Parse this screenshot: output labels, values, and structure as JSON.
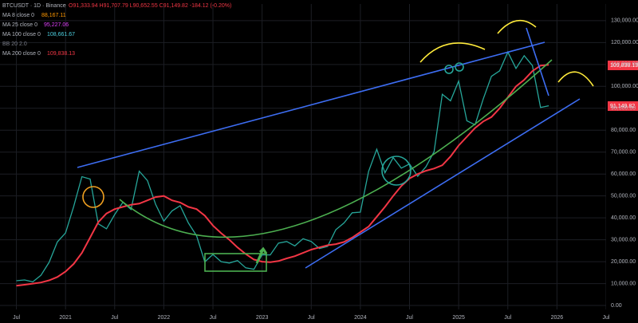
{
  "chart_data": {
    "type": "line",
    "header": {
      "symbol": "BTCUSDT · 1D · Binance",
      "ohlc": "O91,333.94 H91,707.79 L90,652.55 C91,149.82 -184.12 (-0.20%)",
      "ma8": "MA 8 close 0",
      "ma8_value": "88,167.11",
      "ma25": "MA 25 close 0",
      "ma25_value": "95,227.06",
      "ma100": "MA 100 close 0",
      "ma100_value": "108,661.67",
      "bb": "BB 20 2.0",
      "ma200": "MA 200 close 0",
      "ma200_value": "109,838.13"
    },
    "price_tags": [
      "109,838.13",
      "91,149.82"
    ],
    "x": [
      "2020-07",
      "2020-08",
      "2020-09",
      "2020-10",
      "2020-11",
      "2020-12",
      "2021-01",
      "2021-02",
      "2021-03",
      "2021-04",
      "2021-05",
      "2021-06",
      "2021-07",
      "2021-08",
      "2021-09",
      "2021-10",
      "2021-11",
      "2021-12",
      "2022-01",
      "2022-02",
      "2022-03",
      "2022-04",
      "2022-05",
      "2022-06",
      "2022-07",
      "2022-08",
      "2022-09",
      "2022-10",
      "2022-11",
      "2022-12",
      "2023-01",
      "2023-02",
      "2023-03",
      "2023-04",
      "2023-05",
      "2023-06",
      "2023-07",
      "2023-08",
      "2023-09",
      "2023-10",
      "2023-11",
      "2023-12",
      "2024-01",
      "2024-02",
      "2024-03",
      "2024-04",
      "2024-05",
      "2024-06",
      "2024-07",
      "2024-08",
      "2024-09",
      "2024-10",
      "2024-11",
      "2024-12",
      "2025-01",
      "2025-02",
      "2025-03",
      "2025-04",
      "2025-05",
      "2025-06",
      "2025-07",
      "2025-08",
      "2025-09",
      "2025-10",
      "2025-11",
      "2025-12"
    ],
    "series": [
      {
        "name": "BTCUSDT",
        "color": "#26a69a",
        "values": [
          11300,
          11650,
          10780,
          13800,
          19700,
          29000,
          33100,
          45200,
          58800,
          57700,
          37300,
          35000,
          41500,
          47100,
          43800,
          61300,
          57000,
          46200,
          38500,
          43200,
          45500,
          37700,
          31800,
          19900,
          23300,
          20000,
          19400,
          20500,
          17200,
          16500,
          23100,
          23100,
          28500,
          29200,
          27200,
          30500,
          29200,
          26000,
          27000,
          34600,
          37700,
          42300,
          42600,
          61200,
          71300,
          60600,
          67500,
          62700,
          64600,
          59000,
          63300,
          70200,
          96400,
          93400,
          102400,
          84300,
          82500,
          94200,
          104600,
          107100,
          115700,
          108200,
          114000,
          109500,
          90400,
          91150
        ]
      },
      {
        "name": "MA 200",
        "color": "#f23645",
        "values": [
          9000,
          9500,
          10000,
          10500,
          11500,
          13000,
          15500,
          19000,
          24000,
          31000,
          38000,
          42000,
          44000,
          45000,
          46000,
          46500,
          48000,
          49500,
          50000,
          48000,
          47000,
          45000,
          44000,
          41000,
          36500,
          33000,
          30000,
          26500,
          23500,
          21000,
          20000,
          19800,
          20300,
          21500,
          22500,
          24000,
          25500,
          26500,
          27500,
          28000,
          29000,
          31000,
          33500,
          36000,
          40500,
          45000,
          50000,
          54500,
          58000,
          60000,
          61500,
          62500,
          64000,
          68000,
          73000,
          77000,
          81000,
          84000,
          86000,
          90000,
          95000,
          100000,
          103000,
          107000,
          109500,
          109838
        ]
      }
    ],
    "xlim": [
      "2020-05",
      "2026-07"
    ],
    "xticks": [
      {
        "value": "2020-07",
        "label": "Jul"
      },
      {
        "value": "2021-01",
        "label": "2021"
      },
      {
        "value": "2021-07",
        "label": "Jul"
      },
      {
        "value": "2022-01",
        "label": "2022"
      },
      {
        "value": "2022-07",
        "label": "Jul"
      },
      {
        "value": "2023-01",
        "label": "2023"
      },
      {
        "value": "2023-07",
        "label": "Jul"
      },
      {
        "value": "2024-01",
        "label": "2024"
      },
      {
        "value": "2024-07",
        "label": "Jul"
      },
      {
        "value": "2025-01",
        "label": "2025"
      },
      {
        "value": "2025-07",
        "label": "Jul"
      },
      {
        "value": "2026-01",
        "label": "2026"
      },
      {
        "value": "2026-07",
        "label": "Jul"
      }
    ],
    "ylim": [
      -1800,
      137600
    ],
    "yticks": [
      {
        "value": 0,
        "label": "0.00"
      },
      {
        "value": 10000,
        "label": "10,000.00"
      },
      {
        "value": 20000,
        "label": "20,000.00"
      },
      {
        "value": 30000,
        "label": "30,000.00"
      },
      {
        "value": 40000,
        "label": "40,000.00"
      },
      {
        "value": 50000,
        "label": "50,000.00"
      },
      {
        "value": 60000,
        "label": "60,000.00"
      },
      {
        "value": 70000,
        "label": "70,000.00"
      },
      {
        "value": 80000,
        "label": "80,000.00"
      },
      {
        "value": 90000,
        "label": "90,000.00"
      },
      {
        "value": 100000,
        "label": "100,000.00"
      },
      {
        "value": 110000,
        "label": "110,000.00"
      },
      {
        "value": 120000,
        "label": "120,000.00"
      },
      {
        "value": 130000,
        "label": "130,000.00"
      }
    ],
    "grid": true
  }
}
